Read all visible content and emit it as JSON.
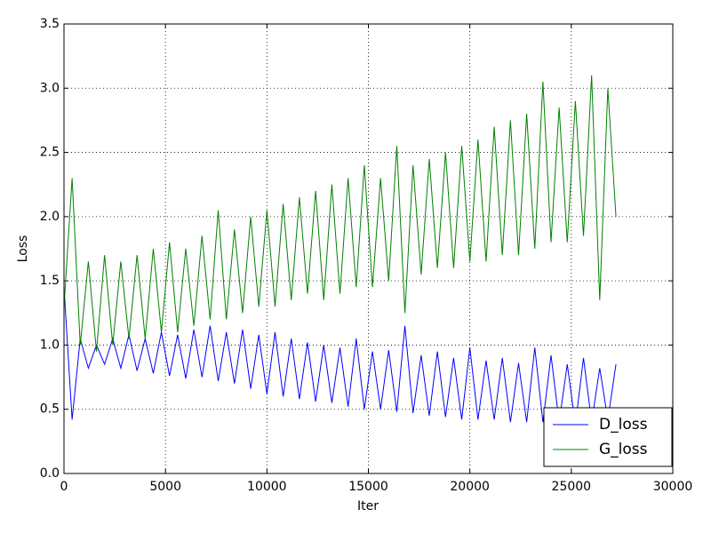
{
  "chart_data": {
    "type": "line",
    "xlabel": "Iter",
    "ylabel": "Loss",
    "x": [
      0,
      400,
      800,
      1200,
      1600,
      2000,
      2400,
      2800,
      3200,
      3600,
      4000,
      4400,
      4800,
      5200,
      5600,
      6000,
      6400,
      6800,
      7200,
      7600,
      8000,
      8400,
      8800,
      9200,
      9600,
      10000,
      10400,
      10800,
      11200,
      11600,
      12000,
      12400,
      12800,
      13200,
      13600,
      14000,
      14400,
      14800,
      15200,
      15600,
      16000,
      16400,
      16800,
      17200,
      17600,
      18000,
      18400,
      18800,
      19200,
      19600,
      20000,
      20400,
      20800,
      21200,
      21600,
      22000,
      22400,
      22800,
      23200,
      23600,
      24000,
      24400,
      24800,
      25200,
      25600,
      26000,
      26400,
      26800,
      27200
    ],
    "series": [
      {
        "name": "D_loss",
        "color": "#0000ff",
        "values": [
          1.45,
          0.42,
          1.05,
          0.82,
          1.0,
          0.85,
          1.05,
          0.82,
          1.08,
          0.8,
          1.05,
          0.78,
          1.1,
          0.76,
          1.08,
          0.74,
          1.12,
          0.75,
          1.15,
          0.72,
          1.1,
          0.7,
          1.12,
          0.66,
          1.08,
          0.62,
          1.1,
          0.6,
          1.05,
          0.58,
          1.02,
          0.56,
          1.0,
          0.55,
          0.98,
          0.52,
          1.05,
          0.5,
          0.95,
          0.5,
          0.96,
          0.48,
          1.15,
          0.47,
          0.92,
          0.45,
          0.95,
          0.44,
          0.9,
          0.42,
          0.98,
          0.42,
          0.88,
          0.42,
          0.9,
          0.4,
          0.86,
          0.4,
          0.98,
          0.4,
          0.92,
          0.4,
          0.85,
          0.38,
          0.9,
          0.4,
          0.82,
          0.42,
          0.85
        ]
      },
      {
        "name": "G_loss",
        "color": "#008000",
        "values": [
          1.3,
          2.3,
          1.0,
          1.65,
          0.95,
          1.7,
          1.0,
          1.65,
          1.05,
          1.7,
          1.05,
          1.75,
          1.1,
          1.8,
          1.1,
          1.75,
          1.15,
          1.85,
          1.2,
          2.05,
          1.2,
          1.9,
          1.25,
          2.0,
          1.3,
          2.05,
          1.3,
          2.1,
          1.35,
          2.15,
          1.4,
          2.2,
          1.35,
          2.25,
          1.4,
          2.3,
          1.45,
          2.4,
          1.45,
          2.3,
          1.5,
          2.55,
          1.25,
          2.4,
          1.55,
          2.45,
          1.6,
          2.5,
          1.6,
          2.55,
          1.65,
          2.6,
          1.65,
          2.7,
          1.7,
          2.75,
          1.7,
          2.8,
          1.75,
          3.05,
          1.8,
          2.85,
          1.8,
          2.9,
          1.85,
          3.1,
          1.35,
          3.0,
          2.0
        ]
      }
    ],
    "xlim": [
      0,
      30000
    ],
    "xticks": [
      0,
      5000,
      10000,
      15000,
      20000,
      25000,
      30000
    ],
    "ylim": [
      0,
      3.5
    ],
    "yticks": [
      {
        "value": 0,
        "label": "0.0"
      },
      {
        "value": 0.5,
        "label": "0.5"
      },
      {
        "value": 1,
        "label": "1.0"
      },
      {
        "value": 1.5,
        "label": "1.5"
      },
      {
        "value": 2,
        "label": "2.0"
      },
      {
        "value": 2.5,
        "label": "2.5"
      },
      {
        "value": 3,
        "label": "3.0"
      },
      {
        "value": 3.5,
        "label": "3.5"
      }
    ],
    "grid": true,
    "legend": "lower right"
  }
}
